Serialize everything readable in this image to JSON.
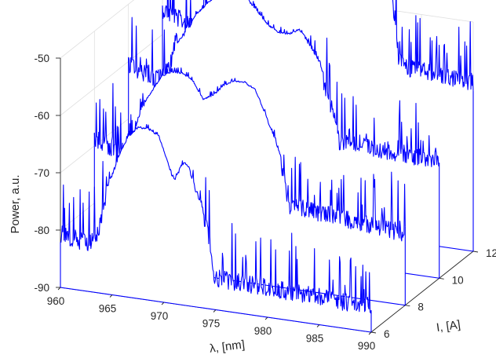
{
  "chart_data": {
    "type": "line3d",
    "xlabel": "λ, [nm]",
    "ylabel": "I, [A]",
    "zlabel": "Power, a.u.",
    "xlim": [
      960,
      990
    ],
    "ylim": [
      6,
      12
    ],
    "zlim": [
      -90,
      -50
    ],
    "x_ticks": [
      "960",
      "965",
      "970",
      "975",
      "980",
      "985",
      "990"
    ],
    "y_ticks": [
      "6",
      "8",
      "10",
      "12"
    ],
    "z_ticks": [
      "-50",
      "-60",
      "-70",
      "-80",
      "-90"
    ],
    "grid": true,
    "baseline": -90,
    "line_color": "#0000ff",
    "series": [
      {
        "current": 6,
        "x": [
          960,
          962.5,
          963.5,
          964.5,
          965.5,
          966.5,
          967.5,
          968.5,
          969.5,
          970.5,
          971.0,
          971.5,
          972.0,
          972.5,
          973.0,
          973.5,
          974.0,
          974.3,
          974.6,
          974.8,
          975.5,
          990
        ],
        "z": [
          -79,
          -80,
          -79,
          -71,
          -66,
          -62,
          -60,
          -60,
          -61,
          -66,
          -68,
          -66,
          -65,
          -66,
          -69,
          -71,
          -73,
          -76,
          -79,
          -83,
          -83,
          -84
        ]
      },
      {
        "current": 8,
        "x": [
          960,
          962.5,
          963.5,
          964.5,
          965.5,
          966.5,
          967.5,
          968.5,
          969.5,
          970.5,
          971.5,
          972.5,
          973.5,
          974.5,
          975.5,
          976.0,
          976.5,
          977.0,
          977.5,
          978.0,
          978.5,
          978.8,
          979.5,
          990
        ],
        "z": [
          -67,
          -69,
          -68,
          -62,
          -59,
          -56,
          -55,
          -55,
          -56,
          -59,
          -58,
          -56,
          -55,
          -55,
          -56,
          -58,
          -60,
          -62,
          -64,
          -67,
          -71,
          -74,
          -74,
          -76
        ]
      },
      {
        "current": 10,
        "x": [
          960,
          962.5,
          963.5,
          964.5,
          965.5,
          966.5,
          967.5,
          968.5,
          969.5,
          970.5,
          971.5,
          972.5,
          973.5,
          974.5,
          975.5,
          976.5,
          977.5,
          978.5,
          979.0,
          979.5,
          980.0,
          980.3,
          981.0,
          990
        ],
        "z": [
          -59,
          -61,
          -60,
          -56,
          -53,
          -50,
          -48,
          -46,
          -45,
          -45,
          -46,
          -48,
          -50,
          -51,
          -51,
          -50,
          -52,
          -55,
          -58,
          -61,
          -64,
          -67,
          -67,
          -68
        ]
      },
      {
        "current": 12,
        "x": [
          960,
          962.5,
          963.5,
          964.5,
          965.5,
          966.5,
          967.5,
          968.5,
          969.5,
          970.5,
          971.5,
          972.5,
          973.5,
          974.5,
          975.5,
          976.5,
          977.5,
          978.5,
          979.5,
          980.5,
          981.5,
          982.0,
          982.5,
          982.8,
          983.5,
          990
        ],
        "z": [
          -54,
          -56,
          -55,
          -50,
          -47,
          -44,
          -42,
          -40,
          -39,
          -38,
          -38,
          -39,
          -40,
          -39,
          -37,
          -36,
          -35,
          -35,
          -36,
          -38,
          -41,
          -45,
          -50,
          -57,
          -58,
          -59
        ]
      }
    ]
  }
}
